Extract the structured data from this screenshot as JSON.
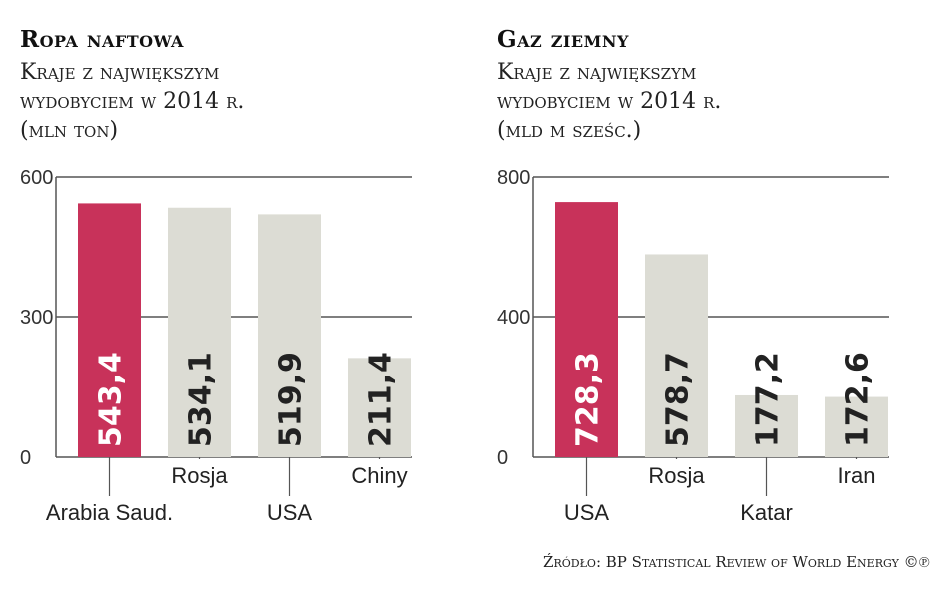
{
  "colors": {
    "highlight": "#c8325a",
    "bar": "#dcdcd4",
    "grid": "#555555",
    "highlight_value_text": "#ffffff",
    "bar_value_text": "#222222"
  },
  "source": "Źródło: BP Statistical Review of World Energy ©℗",
  "chart_data": [
    {
      "type": "bar",
      "title": "Ropa naftowa",
      "subtitle_lines": [
        "Kraje z największym",
        "wydobyciem w 2014 r.",
        "(mln ton)"
      ],
      "categories": [
        "Arabia Saud.",
        "Rosja",
        "USA",
        "Chiny"
      ],
      "values": [
        543.4,
        534.1,
        519.9,
        211.4
      ],
      "value_labels": [
        "543,4",
        "534,1",
        "519,9",
        "211,4"
      ],
      "highlight_index": 0,
      "ylim": [
        0,
        600
      ],
      "yticks": [
        0,
        300,
        600
      ],
      "ytick_labels": [
        "0",
        "300",
        "600"
      ],
      "grid": true,
      "xlabel": "",
      "ylabel": ""
    },
    {
      "type": "bar",
      "title": "Gaz ziemny",
      "subtitle_lines": [
        "Kraje z największym",
        "wydobyciem w 2014 r.",
        "(mld m sześc.)"
      ],
      "categories": [
        "USA",
        "Rosja",
        "Katar",
        "Iran"
      ],
      "values": [
        728.3,
        578.7,
        177.2,
        172.6
      ],
      "value_labels": [
        "728,3",
        "578,7",
        "177,2",
        "172,6"
      ],
      "highlight_index": 0,
      "ylim": [
        0,
        800
      ],
      "yticks": [
        0,
        400,
        800
      ],
      "ytick_labels": [
        "0",
        "400",
        "800"
      ],
      "grid": true,
      "xlabel": "",
      "ylabel": ""
    }
  ]
}
